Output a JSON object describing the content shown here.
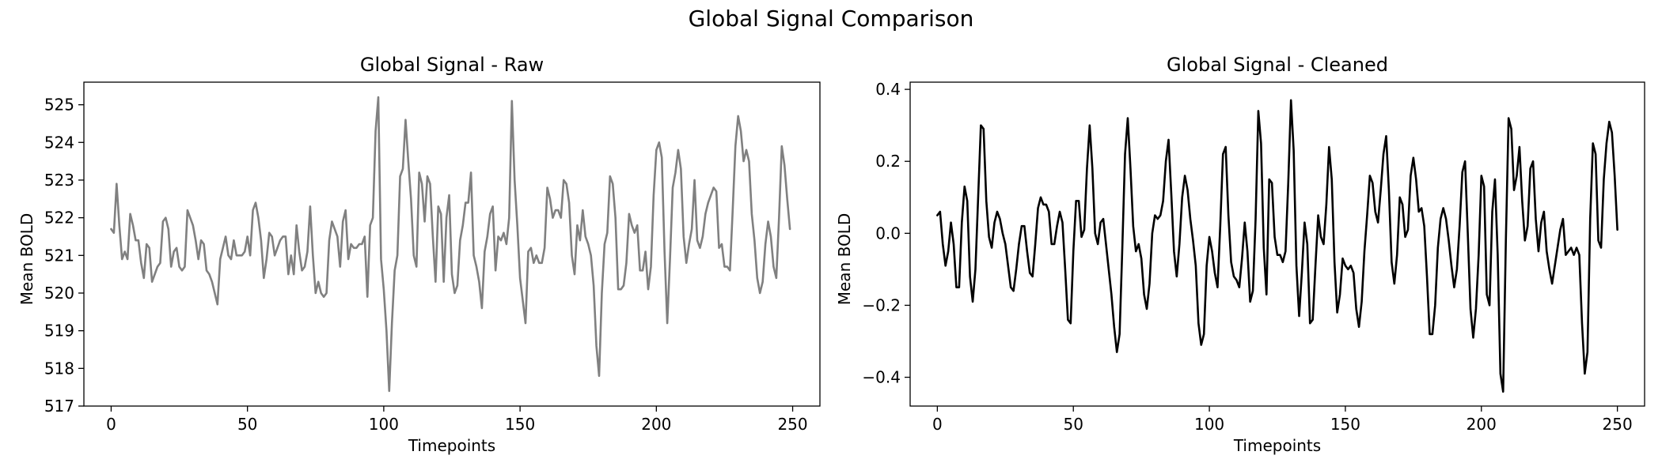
{
  "figure_title": "Global Signal Comparison",
  "chart_data": [
    {
      "type": "line",
      "title": "Global Signal - Raw",
      "xlabel": "Timepoints",
      "ylabel": "Mean BOLD",
      "xlim": [
        -10,
        260
      ],
      "ylim": [
        517,
        525.6
      ],
      "xticks": [
        0,
        50,
        100,
        150,
        200,
        250
      ],
      "yticks": [
        517,
        518,
        519,
        520,
        521,
        522,
        523,
        524,
        525
      ],
      "ytick_labels": [
        "517",
        "518",
        "519",
        "520",
        "521",
        "522",
        "523",
        "524",
        "525"
      ],
      "grid": false,
      "color": "#808080",
      "series": [
        {
          "x_start": 0,
          "x_step": 1,
          "values": [
            521.7,
            521.6,
            522.9,
            521.8,
            520.9,
            521.1,
            520.9,
            522.1,
            521.8,
            521.4,
            521.4,
            520.8,
            520.4,
            521.3,
            521.2,
            520.3,
            520.5,
            520.7,
            520.8,
            521.9,
            522.0,
            521.7,
            520.7,
            521.1,
            521.2,
            520.7,
            520.6,
            520.7,
            522.2,
            522.0,
            521.8,
            521.4,
            520.9,
            521.4,
            521.3,
            520.6,
            520.5,
            520.3,
            520.0,
            519.7,
            520.9,
            521.2,
            521.5,
            521.0,
            520.9,
            521.4,
            521.0,
            521.0,
            521.0,
            521.1,
            521.5,
            521.0,
            522.2,
            522.4,
            522.0,
            521.4,
            520.4,
            520.9,
            521.6,
            521.5,
            521.0,
            521.2,
            521.4,
            521.5,
            521.5,
            520.5,
            521.0,
            520.5,
            521.8,
            521.1,
            520.6,
            520.7,
            521.1,
            522.3,
            521.0,
            520.0,
            520.3,
            520.0,
            519.9,
            520.0,
            521.4,
            521.9,
            521.7,
            521.5,
            520.7,
            521.9,
            522.2,
            520.9,
            521.3,
            521.2,
            521.2,
            521.3,
            521.3,
            521.5,
            519.9,
            521.8,
            522.0,
            524.3,
            525.2,
            520.9,
            520.1,
            519.0,
            517.4,
            519.2,
            520.6,
            521.0,
            523.1,
            523.3,
            524.6,
            523.5,
            522.5,
            521.0,
            520.7,
            523.2,
            522.9,
            521.9,
            523.1,
            522.9,
            521.5,
            520.3,
            522.3,
            522.1,
            520.3,
            522.0,
            522.6,
            520.5,
            520.0,
            520.2,
            521.4,
            521.8,
            522.4,
            522.4,
            523.2,
            521.0,
            520.7,
            520.3,
            519.6,
            521.1,
            521.5,
            522.1,
            522.3,
            520.6,
            521.5,
            521.4,
            521.6,
            521.3,
            522.0,
            525.1,
            523.0,
            521.8,
            520.4,
            519.8,
            519.2,
            521.1,
            521.2,
            520.8,
            521.0,
            520.8,
            520.8,
            521.2,
            522.8,
            522.5,
            522.0,
            522.2,
            522.2,
            522.0,
            523.0,
            522.9,
            522.4,
            521.0,
            520.5,
            521.8,
            521.4,
            522.2,
            521.5,
            521.3,
            521.0,
            520.2,
            518.6,
            517.8,
            520.0,
            521.3,
            521.6,
            523.1,
            522.9,
            522.0,
            520.1,
            520.1,
            520.2,
            520.8,
            522.1,
            521.8,
            521.6,
            521.8,
            520.6,
            520.6,
            521.1,
            520.1,
            520.7,
            522.6,
            523.8,
            524.0,
            523.6,
            521.1,
            519.2,
            520.9,
            522.8,
            523.2,
            523.8,
            523.3,
            521.5,
            520.8,
            521.3,
            521.7,
            523.0,
            521.4,
            521.2,
            521.5,
            522.1,
            522.4,
            522.6,
            522.8,
            522.7,
            521.2,
            521.3,
            520.7,
            520.7,
            520.6,
            522.2,
            523.9,
            524.7,
            524.3,
            523.5,
            523.8,
            523.5,
            522.1,
            521.4,
            520.4,
            520.0,
            520.3,
            521.3,
            521.9,
            521.5,
            520.7,
            520.4,
            522.0,
            523.9,
            523.4,
            522.5,
            521.7
          ]
        }
      ]
    },
    {
      "type": "line",
      "title": "Global Signal - Cleaned",
      "xlabel": "Timepoints",
      "ylabel": "Mean BOLD",
      "xlim": [
        -10,
        260
      ],
      "ylim": [
        -0.48,
        0.42
      ],
      "xticks": [
        0,
        50,
        100,
        150,
        200,
        250
      ],
      "yticks": [
        -0.4,
        -0.2,
        0.0,
        0.2,
        0.4
      ],
      "ytick_labels": [
        "−0.4",
        "−0.2",
        "0.0",
        "0.2",
        "0.4"
      ],
      "grid": false,
      "color": "#000000",
      "series": [
        {
          "x_start": 0,
          "x_step": 1,
          "values": [
            0.05,
            0.06,
            -0.03,
            -0.09,
            -0.05,
            0.03,
            -0.03,
            -0.15,
            -0.15,
            0.03,
            0.13,
            0.09,
            -0.12,
            -0.19,
            -0.1,
            0.1,
            0.3,
            0.29,
            0.09,
            -0.01,
            -0.04,
            0.03,
            0.06,
            0.04,
            0.0,
            -0.03,
            -0.09,
            -0.15,
            -0.16,
            -0.1,
            -0.03,
            0.02,
            0.02,
            -0.05,
            -0.11,
            -0.12,
            -0.03,
            0.07,
            0.1,
            0.08,
            0.08,
            0.06,
            -0.03,
            -0.03,
            0.02,
            0.06,
            0.03,
            -0.1,
            -0.24,
            -0.25,
            -0.05,
            0.09,
            0.09,
            -0.01,
            0.01,
            0.18,
            0.3,
            0.18,
            0.0,
            -0.03,
            0.03,
            0.04,
            -0.03,
            -0.1,
            -0.17,
            -0.26,
            -0.33,
            -0.28,
            -0.04,
            0.22,
            0.32,
            0.18,
            0.02,
            -0.05,
            -0.03,
            -0.07,
            -0.17,
            -0.21,
            -0.14,
            0.0,
            0.05,
            0.04,
            0.05,
            0.09,
            0.2,
            0.26,
            0.11,
            -0.05,
            -0.12,
            -0.03,
            0.1,
            0.16,
            0.12,
            0.04,
            -0.02,
            -0.09,
            -0.25,
            -0.31,
            -0.28,
            -0.09,
            -0.01,
            -0.05,
            -0.11,
            -0.15,
            0.02,
            0.22,
            0.24,
            0.05,
            -0.08,
            -0.12,
            -0.13,
            -0.15,
            -0.07,
            0.03,
            -0.05,
            -0.19,
            -0.16,
            0.04,
            0.34,
            0.25,
            -0.04,
            -0.17,
            0.15,
            0.14,
            -0.01,
            -0.06,
            -0.06,
            -0.08,
            -0.05,
            0.14,
            0.37,
            0.23,
            -0.09,
            -0.23,
            -0.11,
            0.03,
            -0.03,
            -0.25,
            -0.24,
            -0.09,
            0.05,
            -0.01,
            -0.03,
            0.08,
            0.24,
            0.15,
            -0.08,
            -0.22,
            -0.17,
            -0.07,
            -0.09,
            -0.1,
            -0.09,
            -0.11,
            -0.21,
            -0.26,
            -0.19,
            -0.05,
            0.05,
            0.16,
            0.14,
            0.06,
            0.03,
            0.12,
            0.22,
            0.27,
            0.12,
            -0.08,
            -0.14,
            -0.06,
            0.1,
            0.08,
            -0.01,
            0.01,
            0.16,
            0.21,
            0.15,
            0.06,
            0.07,
            0.02,
            -0.12,
            -0.28,
            -0.28,
            -0.2,
            -0.04,
            0.04,
            0.07,
            0.04,
            -0.02,
            -0.09,
            -0.15,
            -0.1,
            0.02,
            0.17,
            0.2,
            0.0,
            -0.21,
            -0.29,
            -0.21,
            -0.06,
            0.16,
            0.13,
            -0.17,
            -0.2,
            0.06,
            0.15,
            -0.06,
            -0.39,
            -0.44,
            -0.02,
            0.32,
            0.29,
            0.12,
            0.16,
            0.24,
            0.09,
            -0.02,
            0.02,
            0.18,
            0.2,
            0.04,
            -0.05,
            0.03,
            0.06,
            -0.05,
            -0.1,
            -0.14,
            -0.09,
            -0.04,
            0.01,
            0.04,
            -0.06,
            -0.05,
            -0.04,
            -0.06,
            -0.04,
            -0.06,
            -0.25,
            -0.39,
            -0.33,
            0.04,
            0.25,
            0.22,
            -0.02,
            -0.04,
            0.15,
            0.25,
            0.31,
            0.28,
            0.16,
            0.01
          ]
        }
      ]
    }
  ]
}
